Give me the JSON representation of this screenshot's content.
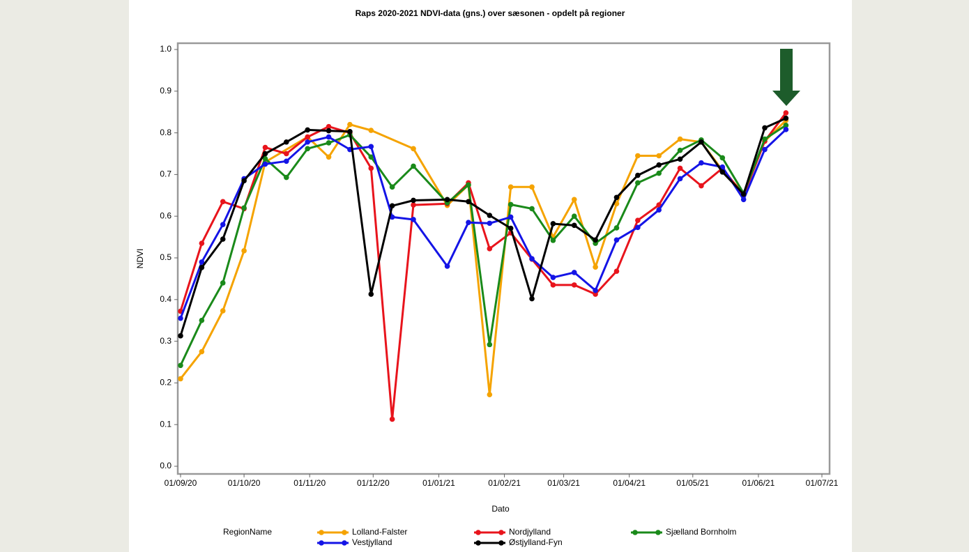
{
  "chart_data": {
    "type": "line",
    "title": "Raps 2020-2021 NDVI-data (gns.) over sæsonen - opdelt på regioner",
    "x_label": "Dato",
    "y_label": "NDVI",
    "legend_title": "RegionName",
    "xlim": [
      "2020-09-01",
      "2021-07-01"
    ],
    "xticks": [
      {
        "value": "2020-09-01",
        "label": "01/09/20"
      },
      {
        "value": "2020-10-01",
        "label": "01/10/20"
      },
      {
        "value": "2020-11-01",
        "label": "01/11/20"
      },
      {
        "value": "2020-12-01",
        "label": "01/12/20"
      },
      {
        "value": "2021-01-01",
        "label": "01/01/21"
      },
      {
        "value": "2021-02-01",
        "label": "01/02/21"
      },
      {
        "value": "2021-03-01",
        "label": "01/03/21"
      },
      {
        "value": "2021-04-01",
        "label": "01/04/21"
      },
      {
        "value": "2021-05-01",
        "label": "01/05/21"
      },
      {
        "value": "2021-06-01",
        "label": "01/06/21"
      },
      {
        "value": "2021-07-01",
        "label": "01/07/21"
      }
    ],
    "ylim": [
      0,
      1
    ],
    "yticks": [
      {
        "value": 0,
        "label": "0.0"
      },
      {
        "value": 0.1,
        "label": "0.1"
      },
      {
        "value": 0.2,
        "label": "0.2"
      },
      {
        "value": 0.3,
        "label": "0.3"
      },
      {
        "value": 0.4,
        "label": "0.4"
      },
      {
        "value": 0.5,
        "label": "0.5"
      },
      {
        "value": 0.6,
        "label": "0.6"
      },
      {
        "value": 0.7,
        "label": "0.7"
      },
      {
        "value": 0.8,
        "label": "0.8"
      },
      {
        "value": 0.9,
        "label": "0.9"
      },
      {
        "value": 1,
        "label": "1.0"
      }
    ],
    "series": [
      {
        "name": "Lolland-Falster",
        "color": "#f5a300",
        "x": [
          "2020-09-01",
          "2020-09-11",
          "2020-09-21",
          "2020-10-01",
          "2020-10-11",
          "2020-10-31",
          "2020-11-10",
          "2020-11-20",
          "2020-11-30",
          "2020-12-20",
          "2021-01-05",
          "2021-01-15",
          "2021-01-25",
          "2021-02-04",
          "2021-02-14",
          "2021-02-24",
          "2021-03-06",
          "2021-03-16",
          "2021-03-26",
          "2021-04-05",
          "2021-04-15",
          "2021-04-25",
          "2021-05-05",
          "2021-05-15",
          "2021-05-25",
          "2021-06-04",
          "2021-06-14"
        ],
        "values": [
          0.21,
          0.275,
          0.373,
          0.517,
          0.73,
          0.79,
          0.742,
          0.82,
          0.806,
          0.762,
          0.626,
          0.675,
          0.172,
          0.67,
          0.67,
          0.55,
          0.64,
          0.478,
          0.63,
          0.745,
          0.745,
          0.785,
          0.778,
          0.71,
          0.655,
          0.78,
          0.83
        ]
      },
      {
        "name": "Nordjylland",
        "color": "#e8141c",
        "x": [
          "2020-09-01",
          "2020-09-11",
          "2020-09-21",
          "2020-10-01",
          "2020-10-11",
          "2020-10-21",
          "2020-10-31",
          "2020-11-10",
          "2020-11-20",
          "2020-11-30",
          "2020-12-10",
          "2020-12-20",
          "2021-01-05",
          "2021-01-15",
          "2021-01-25",
          "2021-02-04",
          "2021-02-14",
          "2021-02-24",
          "2021-03-06",
          "2021-03-16",
          "2021-03-26",
          "2021-04-05",
          "2021-04-15",
          "2021-04-25",
          "2021-05-05",
          "2021-05-15",
          "2021-05-25",
          "2021-06-04",
          "2021-06-14"
        ],
        "values": [
          0.372,
          0.535,
          0.635,
          0.618,
          0.765,
          0.75,
          0.79,
          0.815,
          0.8,
          0.715,
          0.113,
          0.627,
          0.63,
          0.68,
          0.522,
          0.56,
          0.497,
          0.435,
          0.435,
          0.413,
          0.468,
          0.59,
          0.627,
          0.715,
          0.673,
          0.715,
          0.65,
          0.78,
          0.848
        ]
      },
      {
        "name": "Sjælland Bornholm",
        "color": "#1a8a1a",
        "x": [
          "2020-09-01",
          "2020-09-11",
          "2020-09-21",
          "2020-10-01",
          "2020-10-11",
          "2020-10-21",
          "2020-10-31",
          "2020-11-10",
          "2020-11-20",
          "2020-11-30",
          "2020-12-10",
          "2020-12-20",
          "2021-01-05",
          "2021-01-15",
          "2021-01-25",
          "2021-02-04",
          "2021-02-14",
          "2021-02-24",
          "2021-03-06",
          "2021-03-16",
          "2021-03-26",
          "2021-04-05",
          "2021-04-15",
          "2021-04-25",
          "2021-05-05",
          "2021-05-15",
          "2021-05-25",
          "2021-06-04",
          "2021-06-14"
        ],
        "values": [
          0.242,
          0.35,
          0.44,
          0.62,
          0.738,
          0.693,
          0.762,
          0.776,
          0.795,
          0.742,
          0.67,
          0.72,
          0.632,
          0.675,
          0.292,
          0.628,
          0.618,
          0.542,
          0.6,
          0.535,
          0.572,
          0.68,
          0.703,
          0.758,
          0.783,
          0.74,
          0.655,
          0.785,
          0.818
        ]
      },
      {
        "name": "Vestjylland",
        "color": "#1414e6",
        "x": [
          "2020-09-01",
          "2020-09-11",
          "2020-09-21",
          "2020-10-01",
          "2020-10-11",
          "2020-10-21",
          "2020-10-31",
          "2020-11-10",
          "2020-11-20",
          "2020-11-30",
          "2020-12-10",
          "2020-12-20",
          "2021-01-05",
          "2021-01-15",
          "2021-01-25",
          "2021-02-04",
          "2021-02-14",
          "2021-02-24",
          "2021-03-06",
          "2021-03-16",
          "2021-03-26",
          "2021-04-05",
          "2021-04-15",
          "2021-04-25",
          "2021-05-05",
          "2021-05-15",
          "2021-05-25",
          "2021-06-04",
          "2021-06-14"
        ],
        "values": [
          0.355,
          0.49,
          0.58,
          0.69,
          0.725,
          0.732,
          0.778,
          0.79,
          0.76,
          0.767,
          0.598,
          0.592,
          0.48,
          0.585,
          0.583,
          0.598,
          0.498,
          0.453,
          0.465,
          0.422,
          0.543,
          0.573,
          0.615,
          0.69,
          0.728,
          0.718,
          0.64,
          0.76,
          0.808
        ]
      },
      {
        "name": "Østjylland-Fyn",
        "color": "#000000",
        "x": [
          "2020-09-01",
          "2020-09-11",
          "2020-09-21",
          "2020-10-01",
          "2020-10-11",
          "2020-10-21",
          "2020-10-31",
          "2020-11-10",
          "2020-11-20",
          "2020-11-30",
          "2020-12-10",
          "2020-12-20",
          "2021-01-05",
          "2021-01-15",
          "2021-01-25",
          "2021-02-04",
          "2021-02-14",
          "2021-02-24",
          "2021-03-06",
          "2021-03-16",
          "2021-03-26",
          "2021-04-05",
          "2021-04-15",
          "2021-04-25",
          "2021-05-05",
          "2021-05-15",
          "2021-05-25",
          "2021-06-04",
          "2021-06-14"
        ],
        "values": [
          0.313,
          0.477,
          0.545,
          0.685,
          0.75,
          0.778,
          0.807,
          0.805,
          0.803,
          0.413,
          0.625,
          0.638,
          0.64,
          0.635,
          0.602,
          0.571,
          0.402,
          0.582,
          0.578,
          0.543,
          0.645,
          0.698,
          0.723,
          0.737,
          0.778,
          0.706,
          0.653,
          0.812,
          0.835
        ]
      }
    ]
  }
}
